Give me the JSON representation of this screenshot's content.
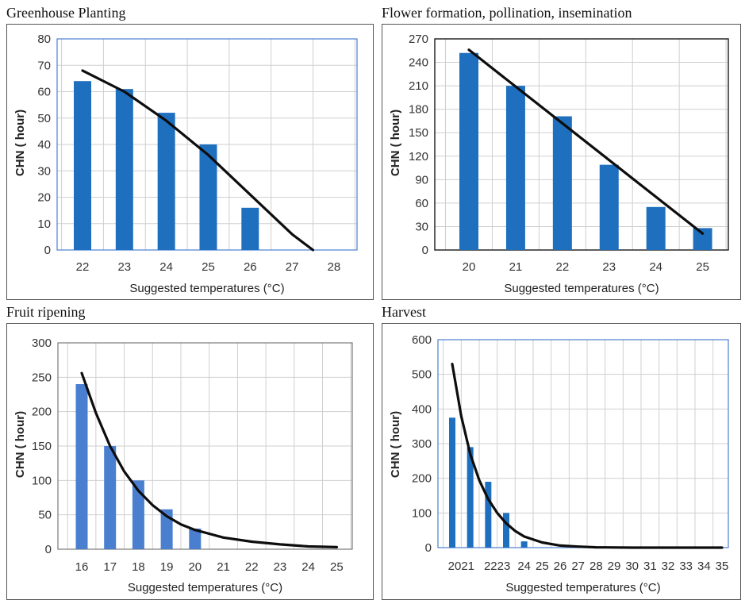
{
  "chart_data": [
    {
      "type": "bar",
      "title": "Greenhouse Planting",
      "xlabel": "Suggested temperatures (°C)",
      "ylabel": "CHN ( hour)",
      "categories": [
        "22",
        "23",
        "24",
        "25",
        "26",
        "27",
        "28"
      ],
      "values": [
        64,
        61,
        52,
        40,
        16,
        0,
        0
      ],
      "yticks": [
        0,
        10,
        20,
        30,
        40,
        50,
        60,
        70,
        80
      ],
      "ylim": [
        0,
        80
      ],
      "trendline": {
        "type": "polynomial",
        "x": [
          22,
          23,
          24,
          25,
          26,
          27,
          27.5
        ],
        "y": [
          68,
          60,
          49,
          36,
          21,
          6,
          0
        ]
      },
      "grid": true,
      "bar_color": "#1f6fbf"
    },
    {
      "type": "bar",
      "title": "Flower formation, pollination, insemination",
      "xlabel": "Suggested temperatures (°C)",
      "ylabel": "CHN ( hour)",
      "categories": [
        "20",
        "21",
        "22",
        "23",
        "24",
        "25"
      ],
      "values": [
        252,
        210,
        171,
        109,
        55,
        28
      ],
      "yticks": [
        0,
        30,
        60,
        90,
        120,
        150,
        180,
        210,
        240,
        270
      ],
      "ylim": [
        0,
        270
      ],
      "trendline": {
        "type": "linear",
        "x": [
          20,
          25
        ],
        "y": [
          256,
          21
        ]
      },
      "grid": true,
      "bar_color": "#1f6fbf"
    },
    {
      "type": "bar",
      "title": "Fruit ripening",
      "xlabel": "Suggested temperatures (°C)",
      "ylabel": "CHN ( hour)",
      "categories": [
        "16",
        "17",
        "18",
        "19",
        "20",
        "21",
        "22",
        "23",
        "24",
        "25"
      ],
      "values": [
        240,
        150,
        100,
        58,
        30,
        0,
        0,
        0,
        0,
        0
      ],
      "yticks": [
        0,
        50,
        100,
        150,
        200,
        250,
        300
      ],
      "ylim": [
        0,
        300
      ],
      "trendline": {
        "type": "exponential",
        "x": [
          16,
          16.5,
          17,
          17.5,
          18,
          18.5,
          19,
          19.5,
          20,
          21,
          22,
          23,
          24,
          25
        ],
        "y": [
          256,
          198,
          150,
          113,
          85,
          64,
          48,
          36,
          28,
          17,
          11,
          7,
          4,
          3
        ]
      },
      "grid": true,
      "bar_color": "#4a7fd0"
    },
    {
      "type": "bar",
      "title": "Harvest",
      "xlabel": "Suggested temperatures (°C)",
      "ylabel": "CHN ( hour)",
      "categories": [
        "20",
        "21",
        "22",
        "23",
        "24",
        "25",
        "26",
        "27",
        "28",
        "29",
        "30",
        "31",
        "32",
        "33",
        "34",
        "35"
      ],
      "tick_labels": [
        "2021",
        "2223",
        "24",
        "25",
        "26",
        "27",
        "28",
        "29",
        "30",
        "31",
        "32",
        "33",
        "34",
        "35"
      ],
      "values": [
        375,
        290,
        190,
        100,
        18,
        0,
        0,
        0,
        0,
        0,
        0,
        0,
        0,
        0,
        0,
        0
      ],
      "yticks": [
        0,
        100,
        200,
        300,
        400,
        500,
        600
      ],
      "ylim": [
        0,
        600
      ],
      "trendline": {
        "type": "exponential",
        "x": [
          20,
          20.5,
          21,
          21.5,
          22,
          22.5,
          23,
          23.5,
          24,
          25,
          26,
          27,
          28,
          30,
          33,
          35
        ],
        "y": [
          530,
          380,
          270,
          195,
          140,
          100,
          70,
          48,
          32,
          15,
          6,
          3,
          1,
          0,
          0,
          0
        ]
      },
      "grid": true,
      "bar_color": "#1f6fbf"
    }
  ]
}
